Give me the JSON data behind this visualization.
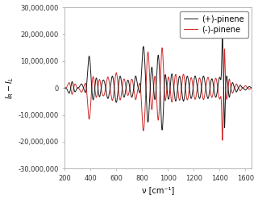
{
  "title": "",
  "xlabel": "ν [cm⁻¹]",
  "ylabel": "$I_R - I_L$",
  "xlim": [
    200,
    1650
  ],
  "ylim": [
    -30000000,
    30000000
  ],
  "xticks": [
    200,
    400,
    600,
    800,
    1000,
    1200,
    1400,
    1600
  ],
  "yticks": [
    -30000000,
    -20000000,
    -10000000,
    0,
    10000000,
    20000000,
    30000000
  ],
  "plus_color": "#1a1a1a",
  "minus_color": "#cc1111",
  "legend_labels": [
    "(+)-pinene",
    "(-)-pinene"
  ],
  "background_color": "#ffffff",
  "figsize": [
    3.2,
    2.47
  ],
  "dpi": 100,
  "linewidth": 0.7,
  "font_size_labels": 7,
  "font_size_ticks": 6,
  "font_size_legend": 7
}
